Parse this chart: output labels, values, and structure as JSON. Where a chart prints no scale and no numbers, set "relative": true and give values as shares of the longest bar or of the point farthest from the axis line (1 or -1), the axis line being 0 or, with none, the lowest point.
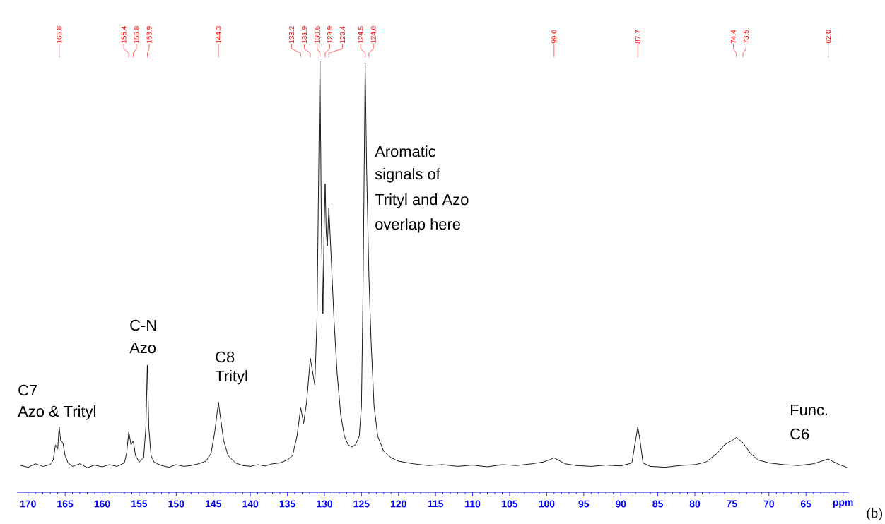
{
  "chart_data": {
    "type": "line",
    "relative": true,
    "color": "#000000",
    "xlim": [
      171.5,
      59.2
    ],
    "xticks": [
      170,
      165,
      160,
      155,
      150,
      145,
      140,
      135,
      130,
      125,
      120,
      115,
      110,
      105,
      100,
      95,
      90,
      85,
      80,
      75,
      70,
      65,
      {
        "value": 60,
        "label": "ppm"
      }
    ],
    "x": [
      171.0,
      170.0,
      169.0,
      168.0,
      167.0,
      166.6,
      166.3,
      166.0,
      165.8,
      165.6,
      165.3,
      165.0,
      164.6,
      164.0,
      163.0,
      162.0,
      161.0,
      160.0,
      159.0,
      158.0,
      157.0,
      156.7,
      156.4,
      156.1,
      155.8,
      155.5,
      155.0,
      154.4,
      154.1,
      153.9,
      153.7,
      153.4,
      153.0,
      152.0,
      151.0,
      150.0,
      149.0,
      148.0,
      147.0,
      146.0,
      145.3,
      144.8,
      144.3,
      144.0,
      143.6,
      143.0,
      142.0,
      141.0,
      140.0,
      139.0,
      138.0,
      137.0,
      136.0,
      135.0,
      134.3,
      133.7,
      133.2,
      132.8,
      132.4,
      131.9,
      131.5,
      131.3,
      131.0,
      130.8,
      130.6,
      130.4,
      130.2,
      130.05,
      129.9,
      129.75,
      129.6,
      129.4,
      129.1,
      128.7,
      128.3,
      127.8,
      127.3,
      126.8,
      126.3,
      125.8,
      125.3,
      125.0,
      124.8,
      124.6,
      124.5,
      124.3,
      124.0,
      123.7,
      123.3,
      122.8,
      122.0,
      121.0,
      120.0,
      118.0,
      116.0,
      114.0,
      112.0,
      110.0,
      108.0,
      106.0,
      104.0,
      102.0,
      100.5,
      99.5,
      99.0,
      98.5,
      97.5,
      96.0,
      94.0,
      92.0,
      90.0,
      88.5,
      88.0,
      87.7,
      87.4,
      87.0,
      86.0,
      84.0,
      82.0,
      80.0,
      78.5,
      77.0,
      76.0,
      75.0,
      74.4,
      73.5,
      72.5,
      71.5,
      70.0,
      68.0,
      66.0,
      64.0,
      62.0,
      60.5,
      59.5
    ],
    "values": [
      0.062,
      0.058,
      0.066,
      0.06,
      0.064,
      0.075,
      0.11,
      0.1,
      0.152,
      0.12,
      0.115,
      0.085,
      0.068,
      0.06,
      0.066,
      0.057,
      0.063,
      0.059,
      0.064,
      0.06,
      0.068,
      0.09,
      0.14,
      0.11,
      0.119,
      0.085,
      0.07,
      0.08,
      0.15,
      0.295,
      0.15,
      0.085,
      0.07,
      0.062,
      0.058,
      0.064,
      0.06,
      0.062,
      0.066,
      0.072,
      0.09,
      0.14,
      0.209,
      0.17,
      0.12,
      0.085,
      0.068,
      0.062,
      0.06,
      0.064,
      0.061,
      0.066,
      0.068,
      0.075,
      0.085,
      0.13,
      0.196,
      0.16,
      0.21,
      0.311,
      0.27,
      0.25,
      0.4,
      0.7,
      1.0,
      0.6,
      0.415,
      0.6,
      0.716,
      0.6,
      0.572,
      0.661,
      0.55,
      0.4,
      0.28,
      0.18,
      0.13,
      0.11,
      0.105,
      0.11,
      0.13,
      0.2,
      0.45,
      0.8,
      0.997,
      0.75,
      0.506,
      0.35,
      0.2,
      0.13,
      0.095,
      0.08,
      0.072,
      0.066,
      0.062,
      0.064,
      0.06,
      0.063,
      0.059,
      0.064,
      0.062,
      0.066,
      0.07,
      0.076,
      0.08,
      0.075,
      0.066,
      0.062,
      0.06,
      0.063,
      0.061,
      0.068,
      0.12,
      0.152,
      0.12,
      0.068,
      0.06,
      0.058,
      0.062,
      0.064,
      0.07,
      0.09,
      0.11,
      0.12,
      0.127,
      0.115,
      0.09,
      0.075,
      0.068,
      0.064,
      0.062,
      0.066,
      0.077,
      0.064,
      0.058
    ],
    "annotations": [
      {
        "text": "165.8",
        "x": 165.8
      },
      {
        "text": "156.4",
        "x": 156.4
      },
      {
        "text": "155.8",
        "x": 155.8
      },
      {
        "text": "153.9",
        "x": 153.9
      },
      {
        "text": "144.3",
        "x": 144.3
      },
      {
        "text": "133.2",
        "x": 133.2
      },
      {
        "text": "131.9",
        "x": 131.9
      },
      {
        "text": "130.6",
        "x": 130.6
      },
      {
        "text": "129.9",
        "x": 129.9
      },
      {
        "text": "129.4",
        "x": 129.4
      },
      {
        "text": "124.5",
        "x": 124.5
      },
      {
        "text": "124.0",
        "x": 124.0
      },
      {
        "text": "99.0",
        "x": 99.0
      },
      {
        "text": "87.7",
        "x": 87.7
      },
      {
        "text": "74.4",
        "x": 74.4
      },
      {
        "text": "73.5",
        "x": 73.5
      },
      {
        "text": "62.0",
        "x": 62.0
      },
      "C7",
      "Azo & Trityl",
      "C-N",
      "Azo",
      "C8",
      "Trityl",
      "Aromatic",
      "signals of",
      "Trityl and Azo",
      "overlap here",
      "Func.",
      "C6",
      "(b)"
    ]
  }
}
